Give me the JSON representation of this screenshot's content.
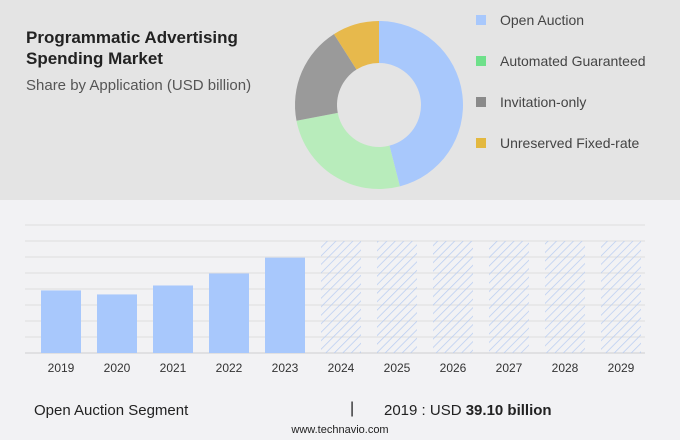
{
  "header": {
    "title": "Programmatic Advertising Spending Market",
    "subtitle": "Share by Application (USD billion)"
  },
  "chart_data": [
    {
      "type": "pie",
      "donut": true,
      "categories": [
        "Open Auction",
        "Automated Guaranteed",
        "Invitation-only",
        "Unreserved Fixed-rate"
      ],
      "values": [
        46,
        26,
        19,
        9
      ],
      "colors": [
        "#a8c8fc",
        "#b8ecbb",
        "#9a9a9a",
        "#e7b94c"
      ],
      "legend_colors": [
        "#a8c8fc",
        "#6ee08a",
        "#8a8a8a",
        "#e3b83f"
      ],
      "legend": "right"
    },
    {
      "type": "bar",
      "categories": [
        "2019",
        "2020",
        "2021",
        "2022",
        "2023",
        "2024",
        "2025",
        "2026",
        "2027",
        "2028",
        "2029"
      ],
      "values": [
        39.1,
        36.6,
        42.2,
        49.7,
        59.6,
        null,
        null,
        null,
        null,
        null,
        null
      ],
      "forecast_categories": [
        "2024",
        "2025",
        "2026",
        "2027",
        "2028",
        "2029"
      ],
      "ylim": [
        0,
        80
      ],
      "grid": true,
      "color": "#a8c8fc",
      "forecast_style": "hatched"
    }
  ],
  "footer": {
    "segment": "Open Auction Segment",
    "separator": "|",
    "year_label": "2019 : USD",
    "value": "39.10 billion",
    "site": "www.technavio.com"
  }
}
